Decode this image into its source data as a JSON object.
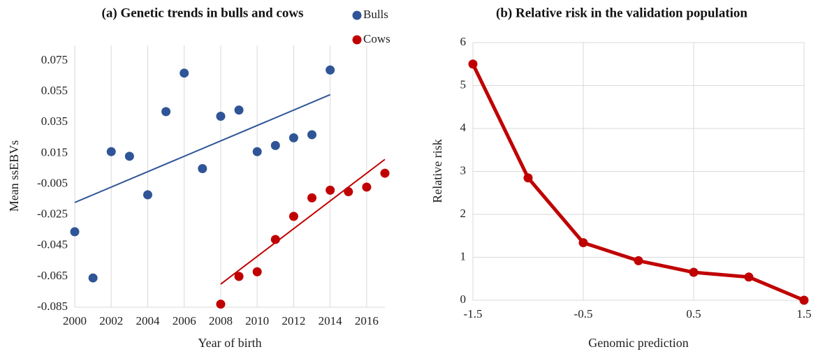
{
  "chart_data": [
    {
      "type": "scatter",
      "title": "(a) Genetic trends in bulls and cows",
      "x_label": "Year of birth",
      "y_label": "Mean ssEBVs",
      "xlim": [
        2000,
        2017
      ],
      "xticks": [
        2000,
        2002,
        2004,
        2006,
        2008,
        2010,
        2012,
        2014,
        2016
      ],
      "ylim": [
        -0.085,
        0.085
      ],
      "yticks": [
        -0.085,
        -0.065,
        -0.045,
        -0.025,
        -0.005,
        0.015,
        0.035,
        0.055,
        0.075
      ],
      "grid": "x",
      "legend": "top right",
      "series": [
        {
          "name": "Bulls",
          "color": "#2f5597",
          "x": [
            2000,
            2001,
            2002,
            2003,
            2004,
            2005,
            2006,
            2007,
            2008,
            2009,
            2010,
            2011,
            2012,
            2013,
            2014
          ],
          "values": [
            -0.036,
            -0.066,
            0.016,
            0.013,
            -0.012,
            0.042,
            0.067,
            0.005,
            0.039,
            0.043,
            0.016,
            0.02,
            0.025,
            0.027,
            0.069
          ]
        },
        {
          "name": "Cows",
          "color": "#c00000",
          "x": [
            2008,
            2009,
            2010,
            2011,
            2012,
            2013,
            2014,
            2015,
            2016,
            2017
          ],
          "values": [
            -0.083,
            -0.065,
            -0.062,
            -0.041,
            -0.026,
            -0.014,
            -0.009,
            -0.01,
            -0.007,
            0.002
          ]
        }
      ],
      "trendlines": [
        {
          "color": "#2f5597",
          "x": [
            2000,
            2014
          ],
          "values": [
            -0.017,
            0.053
          ]
        },
        {
          "color": "#c00000",
          "x": [
            2008,
            2017
          ],
          "values": [
            -0.07,
            0.011
          ]
        }
      ]
    },
    {
      "type": "line",
      "title": "(b) Relative risk in the validation population",
      "x_label": "Genomic prediction",
      "y_label": "Relative risk",
      "xlim": [
        -1.5,
        1.5
      ],
      "xticks": [
        -1.5,
        -0.5,
        0.5,
        1.5
      ],
      "ylim": [
        0,
        6
      ],
      "yticks": [
        0,
        1,
        2,
        3,
        4,
        5,
        6
      ],
      "grid": "both",
      "color": "#c00000",
      "x": [
        -1.5,
        -1,
        -0.5,
        0,
        0.5,
        1,
        1.5
      ],
      "values": [
        5.5,
        2.85,
        1.34,
        0.92,
        0.65,
        0.54,
        0
      ]
    }
  ]
}
